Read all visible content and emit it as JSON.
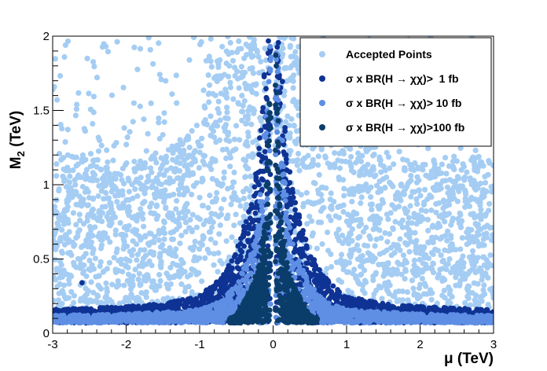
{
  "chart_data": {
    "type": "scatter",
    "xlabel": "μ (TeV)",
    "ylabel": "M2 (TeV)",
    "ylabel_main": "M",
    "ylabel_sub": "2",
    "ylabel_unit": " (TeV)",
    "xlim": [
      -3,
      3
    ],
    "ylim": [
      0,
      2
    ],
    "x_ticks": [
      -3,
      -2,
      -1,
      0,
      1,
      2,
      3
    ],
    "x_tick_labels": [
      "-3",
      "-2",
      "-1",
      "0",
      "1",
      "2",
      "3"
    ],
    "y_ticks": [
      0,
      0.5,
      1,
      1.5,
      2
    ],
    "y_tick_labels": [
      "0",
      "0.5",
      "1",
      "1.5",
      "2"
    ],
    "grid": false,
    "legend_position": "top-right",
    "series": [
      {
        "name": "Accepted Points",
        "color": "#a5cdf3",
        "description_region": "fills most of plane except upper-left and upper-right corners",
        "envelope": {
          "x": [
            0.09,
            0.2,
            0.4,
            0.7,
            1.0,
            1.5,
            2.0,
            2.5,
            3.0
          ],
          "y_top": [
            2.0,
            2.0,
            2.0,
            2.0,
            1.45,
            1.2,
            1.15,
            1.2,
            1.2
          ]
        }
      },
      {
        "name": "σ x BR(H → χχ)>  1 fb",
        "color": "#0f3394",
        "envelope": {
          "x": [
            0.0,
            0.05,
            0.1,
            0.2,
            0.3,
            0.5,
            0.7,
            1.0,
            1.5,
            2.0,
            3.0
          ],
          "y_top": [
            2.0,
            2.0,
            1.9,
            1.2,
            0.9,
            0.55,
            0.38,
            0.25,
            0.2,
            0.18,
            0.16
          ]
        }
      },
      {
        "name": "σ x BR(H → χχ)> 10 fb",
        "color": "#5e8fe4",
        "envelope": {
          "x": [
            0.0,
            0.05,
            0.1,
            0.2,
            0.3,
            0.5,
            0.7,
            1.0,
            2.0,
            3.0
          ],
          "y_top": [
            2.0,
            2.0,
            1.5,
            0.8,
            0.55,
            0.33,
            0.22,
            0.16,
            0.13,
            0.12
          ]
        }
      },
      {
        "name": "σ x BR(H → χχ)>100 fb",
        "color": "#0b3d6a",
        "envelope": {
          "x": [
            0.0,
            0.05,
            0.1,
            0.2,
            0.3,
            0.5,
            0.6
          ],
          "y_top": [
            2.0,
            2.0,
            0.8,
            0.45,
            0.3,
            0.12,
            0.1
          ]
        }
      }
    ],
    "notes": "points form symmetric funnel around mu = 0"
  },
  "legend": {
    "entries": [
      {
        "label": "Accepted Points",
        "color": "#a5cdf3"
      },
      {
        "label": "σ x BR(H → χχ)>  1 fb",
        "color": "#0f3394"
      },
      {
        "label": "σ x BR(H → χχ)> 10 fb",
        "color": "#5e8fe4"
      },
      {
        "label": "σ x BR(H → χχ)>100 fb",
        "color": "#0b3d6a"
      }
    ]
  }
}
